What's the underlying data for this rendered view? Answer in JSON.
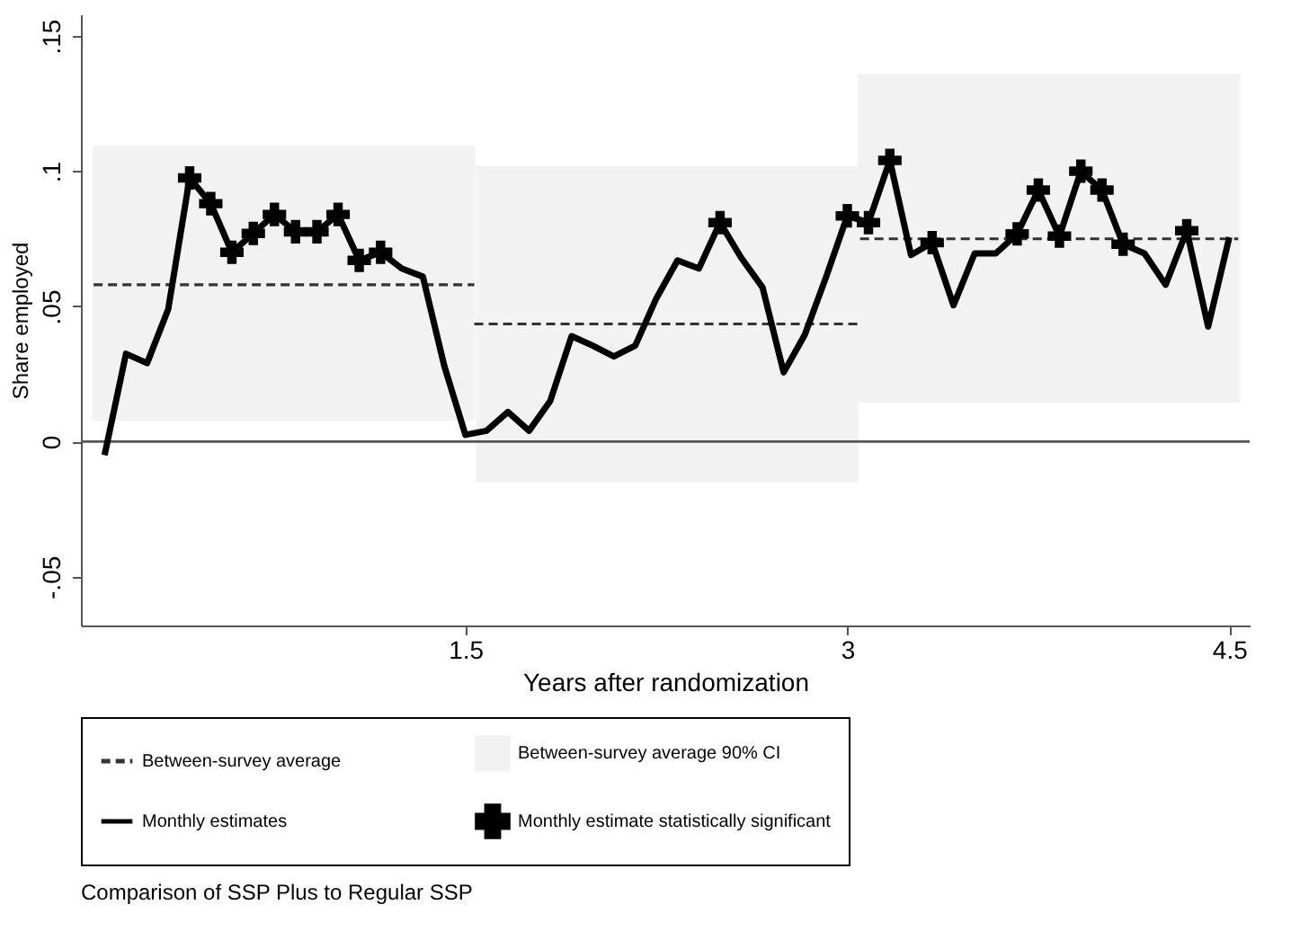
{
  "chart_data": {
    "type": "line",
    "xlabel": "Years after randomization",
    "ylabel": "Share employed",
    "xlim": [
      -0.01,
      4.58
    ],
    "ylim": [
      -0.068,
      0.158
    ],
    "xticks": [
      1.5,
      3,
      4.5
    ],
    "yticks": [
      {
        "value": -0.05,
        "label": "-.05"
      },
      {
        "value": 0,
        "label": "0"
      },
      {
        "value": 0.05,
        "label": ".05"
      },
      {
        "value": 0.1,
        "label": ".1"
      },
      {
        "value": 0.15,
        "label": ".15"
      }
    ],
    "grid": false,
    "legend": "bottom",
    "ref_lines": [
      {
        "axis": "y",
        "value": 0,
        "color": "#555555"
      }
    ],
    "annotations": [
      "Comparison of SSP Plus to Regular SSP"
    ],
    "series": [
      {
        "name": "Between-survey average",
        "type": "line",
        "line_style": "dashed",
        "color": "#333333",
        "x": [
          0.04,
          1.535
        ],
        "values": [
          0.058,
          0.058
        ]
      },
      {
        "type": "line",
        "line_style": "dashed",
        "color": "#333333",
        "x": [
          1.535,
          3.05
        ],
        "values": [
          0.0435,
          0.0435
        ]
      },
      {
        "type": "line",
        "line_style": "dashed",
        "color": "#333333",
        "x": [
          3.05,
          4.535
        ],
        "values": [
          0.075,
          0.075
        ]
      },
      {
        "name": "Between-survey average 90% CI",
        "type": "bar",
        "color": "#f2f2f2",
        "x": [
          0.7875,
          2.2925,
          3.7925
        ],
        "base": [
          0.0077,
          -0.015,
          0.0143
        ],
        "values": [
          0.1018,
          0.117,
          0.1217
        ]
      },
      {
        "name": "Monthly estimates",
        "line_style": "solid",
        "color": "#000000",
        "x": [
          0.083,
          0.167,
          0.25,
          0.333,
          0.417,
          0.5,
          0.583,
          0.667,
          0.75,
          0.833,
          0.917,
          1,
          1.083,
          1.167,
          1.25,
          1.333,
          1.417,
          1.5,
          1.583,
          1.667,
          1.75,
          1.833,
          1.917,
          2,
          2.083,
          2.167,
          2.25,
          2.333,
          2.417,
          2.5,
          2.583,
          2.667,
          2.75,
          2.833,
          2.917,
          3,
          3.083,
          3.167,
          3.25,
          3.333,
          3.417,
          3.5,
          3.583,
          3.667,
          3.75,
          3.833,
          3.917,
          4,
          4.083,
          4.167,
          4.25,
          4.333,
          4.417,
          4.5
        ],
        "values": [
          -0.005,
          0.0325,
          0.029,
          0.049,
          0.0975,
          0.088,
          0.07,
          0.077,
          0.084,
          0.0776,
          0.0776,
          0.084,
          0.067,
          0.07,
          0.064,
          0.061,
          0.028,
          0.0025,
          0.004,
          0.011,
          0.004,
          0.015,
          0.039,
          0.0355,
          0.0315,
          0.0355,
          0.053,
          0.067,
          0.064,
          0.081,
          0.068,
          0.057,
          0.0256,
          0.0395,
          0.061,
          0.0835,
          0.081,
          0.104,
          0.069,
          0.0736,
          0.0504,
          0.0696,
          0.0696,
          0.0768,
          0.093,
          0.076,
          0.1,
          0.093,
          0.073,
          0.0696,
          0.058,
          0.078,
          0.0425,
          0.0756
        ]
      },
      {
        "name": "Monthly estimate statistically significant",
        "type": "scatter",
        "marker": "cross",
        "color": "#000000",
        "x": [
          0.417,
          0.5,
          0.583,
          0.667,
          0.75,
          0.833,
          0.917,
          1,
          1.083,
          1.167,
          2.5,
          3,
          3.083,
          3.167,
          3.333,
          3.667,
          3.75,
          3.833,
          3.917,
          4,
          4.083,
          4.333
        ],
        "values": [
          0.0975,
          0.088,
          0.07,
          0.077,
          0.084,
          0.0776,
          0.0776,
          0.084,
          0.067,
          0.07,
          0.081,
          0.0835,
          0.081,
          0.104,
          0.0736,
          0.0768,
          0.093,
          0.076,
          0.1,
          0.093,
          0.073,
          0.078
        ]
      }
    ]
  }
}
